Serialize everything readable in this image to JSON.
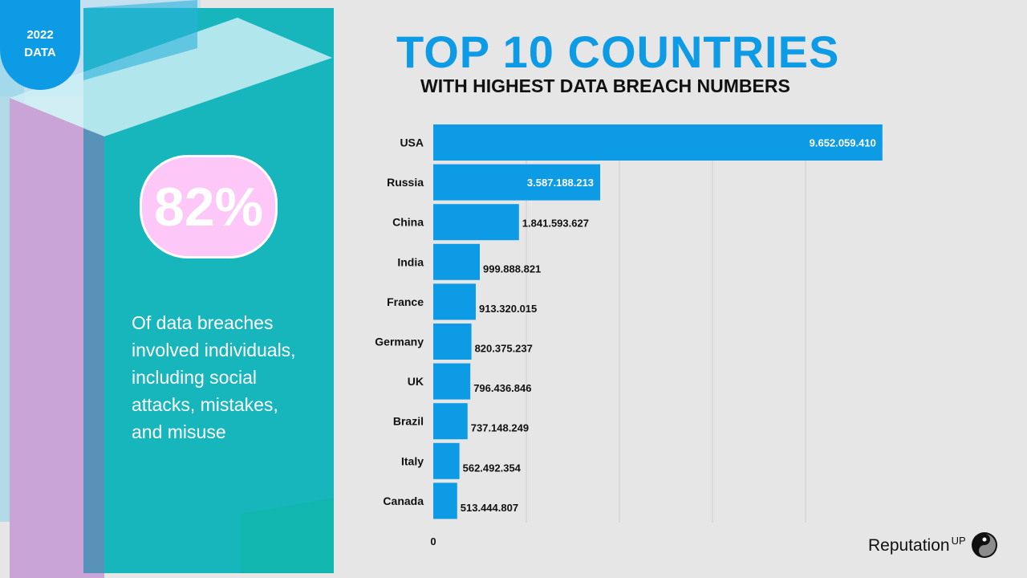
{
  "badge": {
    "year": "2022",
    "label": "DATA"
  },
  "stat": {
    "value": "82%",
    "description": "Of data breaches involved individuals, including social attacks, mistakes, and misuse"
  },
  "title": "TOP 10 COUNTRIES",
  "subtitle": "WITH HIGHEST DATA BREACH NUMBERS",
  "brand": {
    "name": "Reputation",
    "suffix": "UP"
  },
  "colors": {
    "bar": "#0d9be6",
    "teal": "#1cb7c0",
    "pink": "#fdc8f7"
  },
  "chart_data": {
    "type": "bar",
    "orientation": "horizontal",
    "title": "TOP 10 COUNTRIES",
    "subtitle": "WITH HIGHEST DATA BREACH NUMBERS",
    "categories": [
      "USA",
      "Russia",
      "China",
      "India",
      "France",
      "Germany",
      "UK",
      "Brazil",
      "Italy",
      "Canada"
    ],
    "values": [
      9652059410,
      3587188213,
      1841593627,
      999888821,
      913320015,
      820375237,
      796436846,
      737148249,
      562492354,
      513444807
    ],
    "value_labels": [
      "9.652.059.410",
      "3.587.188.213",
      "1.841.593.627",
      "999.888.821",
      "913.320.015",
      "820.375.237",
      "796.436.846",
      "737.148.249",
      "562.492.354",
      "513.444.807"
    ],
    "xlim": [
      0,
      10000000000
    ],
    "x_tick_labels": [
      "0"
    ],
    "grid": true,
    "legend": "none"
  }
}
